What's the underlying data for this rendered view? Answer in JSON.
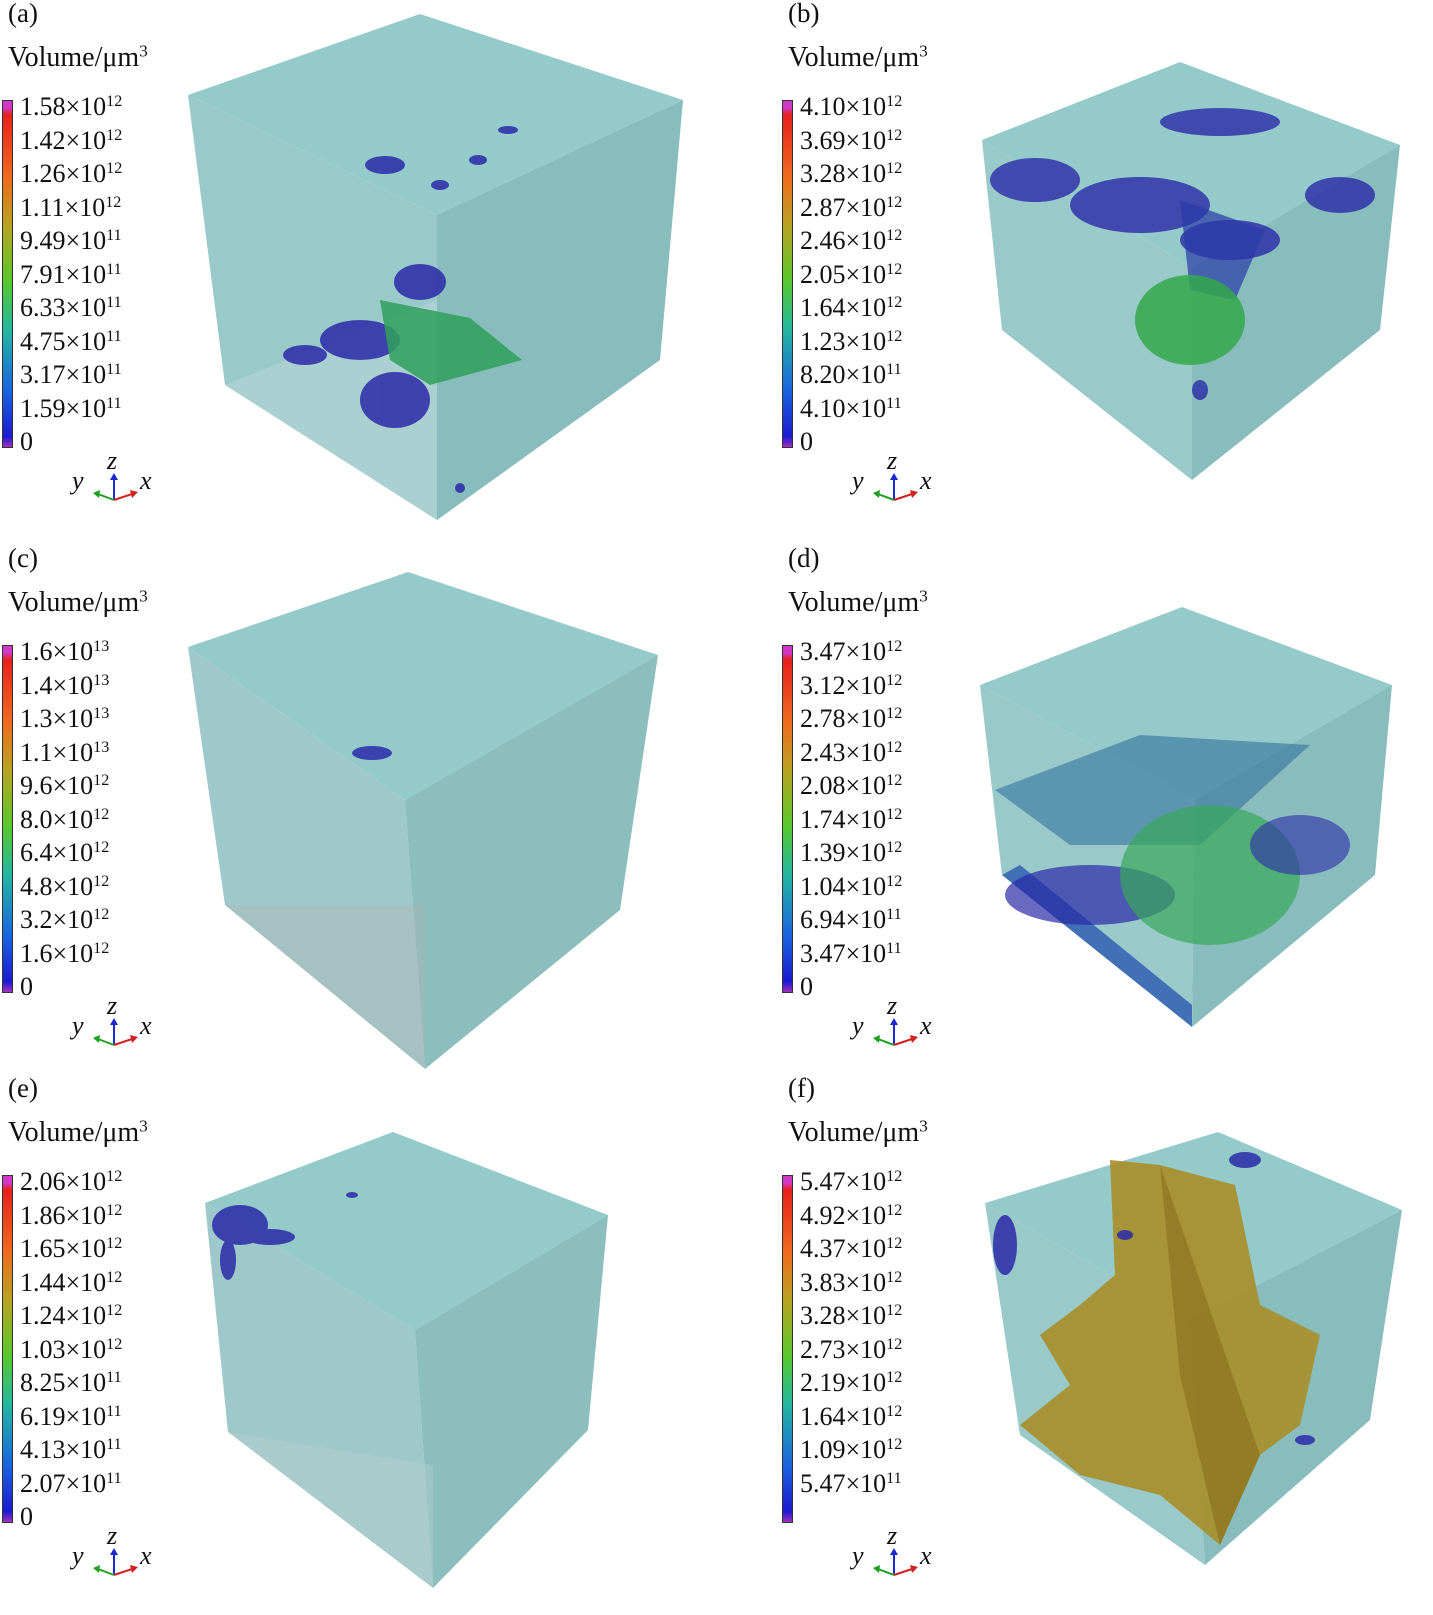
{
  "colorbar_title": "Volume/μm",
  "colorbar_title_exponent": "3",
  "axis_labels": {
    "y": "y",
    "z": "z",
    "x": "x"
  },
  "panels": [
    {
      "label": "(a)",
      "ticks": [
        {
          "m": "1.58×10",
          "e": "12"
        },
        {
          "m": "1.42×10",
          "e": "12"
        },
        {
          "m": "1.26×10",
          "e": "12"
        },
        {
          "m": "1.11×10",
          "e": "12"
        },
        {
          "m": "9.49×10",
          "e": "11"
        },
        {
          "m": "7.91×10",
          "e": "11"
        },
        {
          "m": "6.33×10",
          "e": "11"
        },
        {
          "m": "4.75×10",
          "e": "11"
        },
        {
          "m": "3.17×10",
          "e": "11"
        },
        {
          "m": "1.59×10",
          "e": "11"
        },
        {
          "m": "0",
          "e": ""
        }
      ]
    },
    {
      "label": "(b)",
      "ticks": [
        {
          "m": "4.10×10",
          "e": "12"
        },
        {
          "m": "3.69×10",
          "e": "12"
        },
        {
          "m": "3.28×10",
          "e": "12"
        },
        {
          "m": "2.87×10",
          "e": "12"
        },
        {
          "m": "2.46×10",
          "e": "12"
        },
        {
          "m": "2.05×10",
          "e": "12"
        },
        {
          "m": "1.64×10",
          "e": "12"
        },
        {
          "m": "1.23×10",
          "e": "12"
        },
        {
          "m": "8.20×10",
          "e": "11"
        },
        {
          "m": "4.10×10",
          "e": "11"
        },
        {
          "m": "0",
          "e": ""
        }
      ]
    },
    {
      "label": "(c)",
      "ticks": [
        {
          "m": "1.6×10",
          "e": "13"
        },
        {
          "m": "1.4×10",
          "e": "13"
        },
        {
          "m": "1.3×10",
          "e": "13"
        },
        {
          "m": "1.1×10",
          "e": "13"
        },
        {
          "m": "9.6×10",
          "e": "12"
        },
        {
          "m": "8.0×10",
          "e": "12"
        },
        {
          "m": "6.4×10",
          "e": "12"
        },
        {
          "m": "4.8×10",
          "e": "12"
        },
        {
          "m": "3.2×10",
          "e": "12"
        },
        {
          "m": "1.6×10",
          "e": "12"
        },
        {
          "m": "0",
          "e": ""
        }
      ]
    },
    {
      "label": "(d)",
      "ticks": [
        {
          "m": "3.47×10",
          "e": "12"
        },
        {
          "m": "3.12×10",
          "e": "12"
        },
        {
          "m": "2.78×10",
          "e": "12"
        },
        {
          "m": "2.43×10",
          "e": "12"
        },
        {
          "m": "2.08×10",
          "e": "12"
        },
        {
          "m": "1.74×10",
          "e": "12"
        },
        {
          "m": "1.39×10",
          "e": "12"
        },
        {
          "m": "1.04×10",
          "e": "12"
        },
        {
          "m": "6.94×10",
          "e": "11"
        },
        {
          "m": "3.47×10",
          "e": "11"
        },
        {
          "m": "0",
          "e": ""
        }
      ]
    },
    {
      "label": "(e)",
      "ticks": [
        {
          "m": "2.06×10",
          "e": "12"
        },
        {
          "m": "1.86×10",
          "e": "12"
        },
        {
          "m": "1.65×10",
          "e": "12"
        },
        {
          "m": "1.44×10",
          "e": "12"
        },
        {
          "m": "1.24×10",
          "e": "12"
        },
        {
          "m": "1.03×10",
          "e": "12"
        },
        {
          "m": "8.25×10",
          "e": "11"
        },
        {
          "m": "6.19×10",
          "e": "11"
        },
        {
          "m": "4.13×10",
          "e": "11"
        },
        {
          "m": "2.07×10",
          "e": "11"
        },
        {
          "m": "0",
          "e": ""
        }
      ]
    },
    {
      "label": "(f)",
      "ticks": [
        {
          "m": "5.47×10",
          "e": "12"
        },
        {
          "m": "4.92×10",
          "e": "12"
        },
        {
          "m": "4.37×10",
          "e": "12"
        },
        {
          "m": "3.83×10",
          "e": "12"
        },
        {
          "m": "3.28×10",
          "e": "12"
        },
        {
          "m": "2.73×10",
          "e": "12"
        },
        {
          "m": "2.19×10",
          "e": "12"
        },
        {
          "m": "1.64×10",
          "e": "12"
        },
        {
          "m": "1.09×10",
          "e": "12"
        },
        {
          "m": "5.47×10",
          "e": "11"
        }
      ]
    }
  ]
}
